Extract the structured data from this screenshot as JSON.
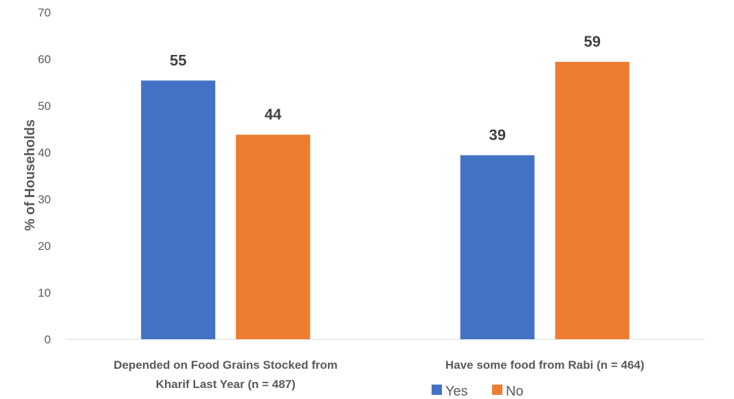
{
  "chart_data": {
    "type": "bar",
    "title": "",
    "xlabel": "",
    "ylabel": "% of Households",
    "ylim": [
      0,
      70
    ],
    "yticks": [
      0,
      10,
      20,
      30,
      40,
      50,
      60,
      70
    ],
    "grid": false,
    "legend": "bottom-right",
    "categories": [
      [
        "Depended on Food Grains Stocked from",
        "Kharif Last Year (n = 487)"
      ],
      [
        "Have some food from Rabi (n = 464)"
      ]
    ],
    "series": [
      {
        "name": "Yes",
        "color": "#4472C4",
        "values": [
          55.4,
          39.4
        ],
        "labels": [
          "55",
          "39"
        ]
      },
      {
        "name": "No",
        "color": "#ED7D31",
        "values": [
          43.8,
          59.4
        ],
        "labels": [
          "44",
          "59"
        ]
      }
    ]
  }
}
